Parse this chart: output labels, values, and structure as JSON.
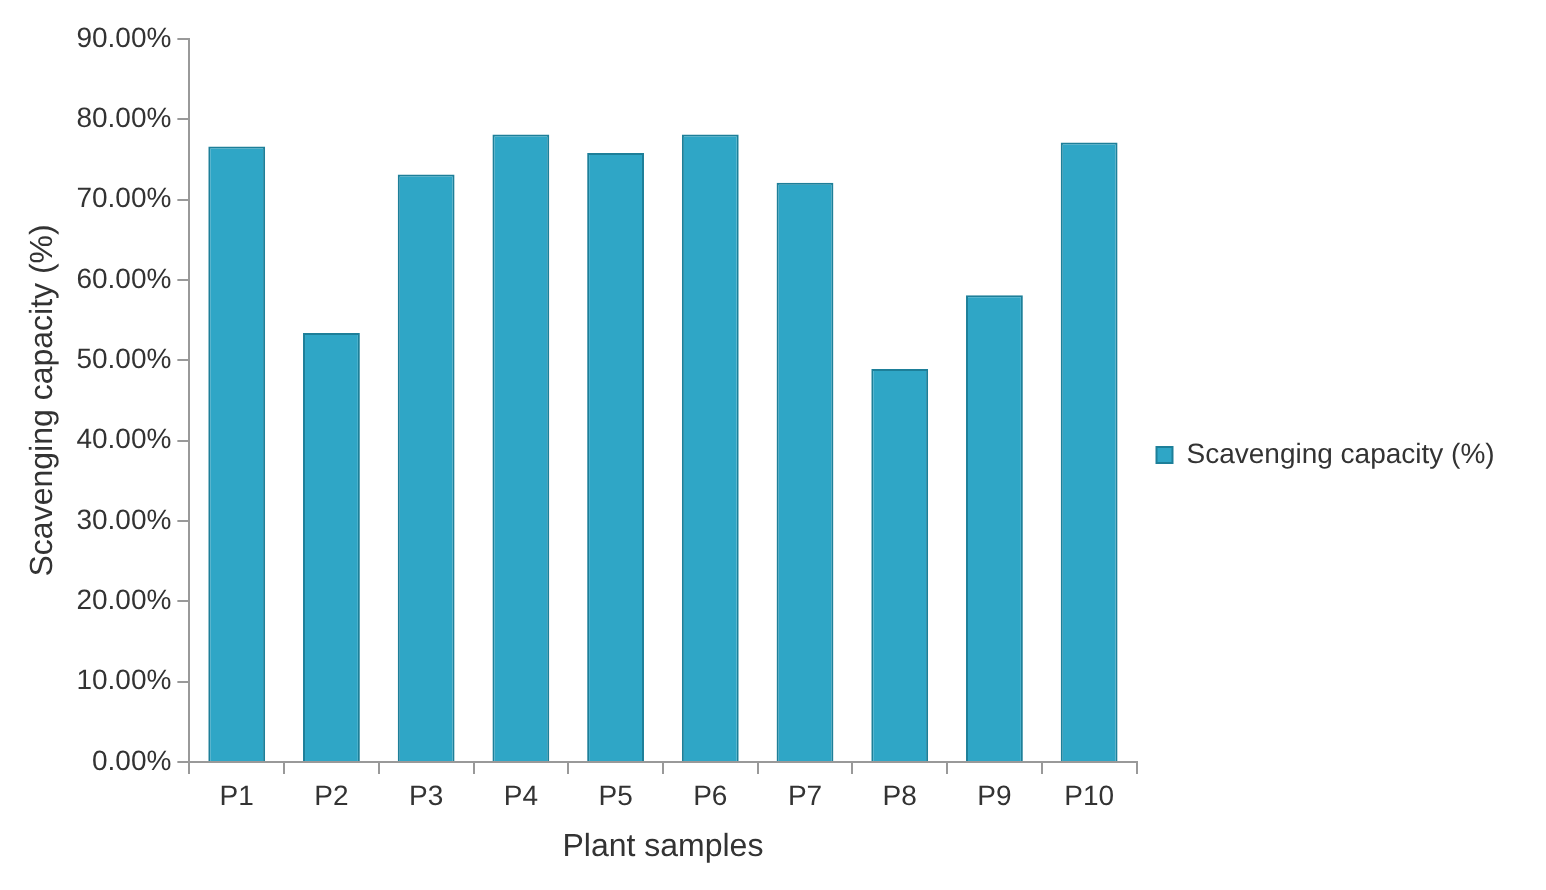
{
  "chart_data": {
    "type": "bar",
    "xlabel": "Plant samples",
    "ylabel": "Scavenging capacity (%)",
    "categories": [
      "P1",
      "P2",
      "P3",
      "P4",
      "P5",
      "P6",
      "P7",
      "P8",
      "P9",
      "P10"
    ],
    "series": [
      {
        "name": "Scavenging capacity (%)",
        "color": "#2fa6c6",
        "values": [
          76.6,
          53.4,
          73.1,
          78.1,
          75.8,
          78.1,
          72.1,
          48.9,
          58.1,
          77.1
        ]
      }
    ],
    "ylim": [
      0,
      90
    ],
    "yticks": [
      {
        "value": 0,
        "label": "0.00%"
      },
      {
        "value": 10,
        "label": "10.00%"
      },
      {
        "value": 20,
        "label": "20.00%"
      },
      {
        "value": 30,
        "label": "30.00%"
      },
      {
        "value": 40,
        "label": "40.00%"
      },
      {
        "value": 50,
        "label": "50.00%"
      },
      {
        "value": 60,
        "label": "60.00%"
      },
      {
        "value": 70,
        "label": "70.00%"
      },
      {
        "value": 80,
        "label": "80.00%"
      },
      {
        "value": 90,
        "label": "90.00%"
      }
    ],
    "grid": false,
    "legend": "right"
  }
}
